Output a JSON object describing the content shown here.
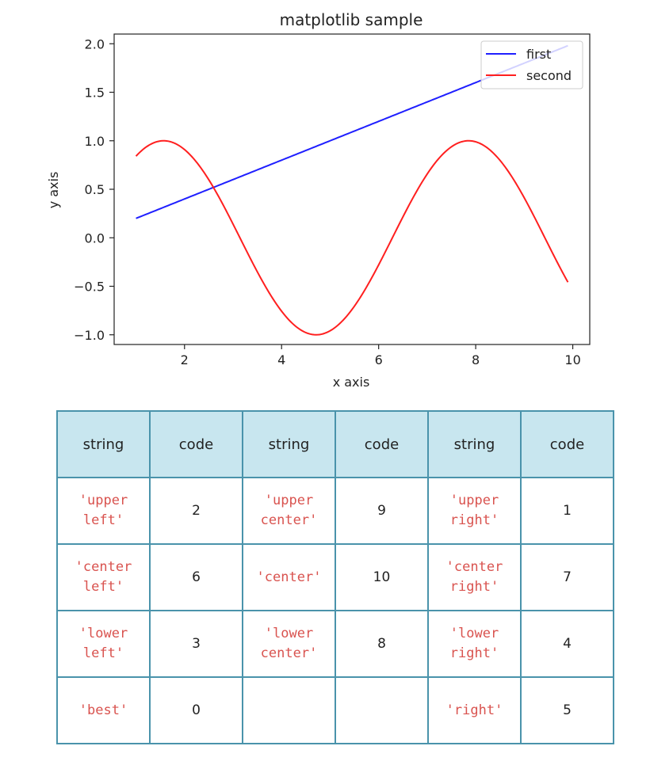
{
  "chart_data": {
    "type": "line",
    "title": "matplotlib sample",
    "xlabel": "x axis",
    "ylabel": "y axis",
    "xlim": [
      0.55,
      10.35
    ],
    "ylim": [
      -1.1,
      2.1
    ],
    "xticks": [
      2,
      4,
      6,
      8,
      10
    ],
    "yticks": [
      2.0,
      1.5,
      1.0,
      0.5,
      0.0,
      -0.5,
      -1.0
    ],
    "xtick_labels": [
      "2",
      "4",
      "6",
      "8",
      "10"
    ],
    "ytick_labels": [
      "2.0",
      "1.5",
      "1.0",
      "0.5",
      "0.0",
      "−0.5",
      "−1.0"
    ],
    "legend": "upper right",
    "grid": false,
    "series": [
      {
        "name": "first",
        "color": "#1f1fff",
        "function": "y = x/5",
        "x_range": [
          1.0,
          9.9
        ]
      },
      {
        "name": "second",
        "color": "#ff1f1f",
        "function": "y = sin(x)",
        "x_range": [
          1.0,
          9.9
        ]
      }
    ]
  },
  "table": {
    "header": [
      "string",
      "code",
      "string",
      "code",
      "string",
      "code"
    ],
    "rows": [
      [
        {
          "s": "'upper left'",
          "c": "2"
        },
        {
          "s": "'upper center'",
          "c": "9"
        },
        {
          "s": "'upper right'",
          "c": "1"
        }
      ],
      [
        {
          "s": "'center left'",
          "c": "6"
        },
        {
          "s": "'center'",
          "c": "10"
        },
        {
          "s": "'center right'",
          "c": "7"
        }
      ],
      [
        {
          "s": "'lower left'",
          "c": "3"
        },
        {
          "s": "'lower center'",
          "c": "8"
        },
        {
          "s": "'lower right'",
          "c": "4"
        }
      ],
      [
        {
          "s": "'best'",
          "c": "0"
        },
        {
          "s": "",
          "c": ""
        },
        {
          "s": "'right'",
          "c": "5"
        }
      ]
    ]
  }
}
